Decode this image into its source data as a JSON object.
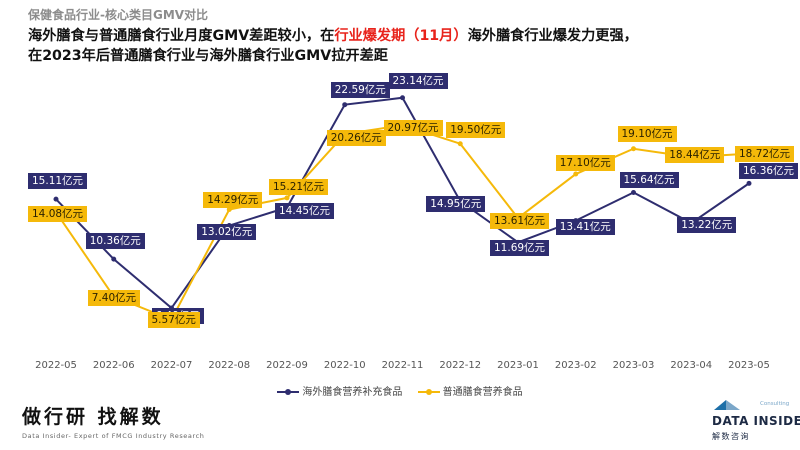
{
  "subtitle": "保健食品行业-核心类目GMV对比",
  "headline": {
    "line1_before": "海外膳食与普通膳食行业月度GMV差距较小，在",
    "line1_highlight": "行业爆发期（11月）",
    "line1_after": "海外膳食行业爆发力更强，",
    "line2": "在2023年后普通膳食行业与海外膳食行业GMV拉开差距"
  },
  "chart_data": {
    "type": "line",
    "categories": [
      "2022-05",
      "2022-06",
      "2022-07",
      "2022-08",
      "2022-09",
      "2022-10",
      "2022-11",
      "2022-12",
      "2023-01",
      "2023-02",
      "2023-03",
      "2023-04",
      "2023-05"
    ],
    "unit": "亿元",
    "series": [
      {
        "name": "海外膳食营养补充食品",
        "color": "#2e2d6f",
        "values": [
          15.11,
          10.36,
          6.49,
          13.02,
          14.45,
          22.59,
          23.14,
          14.95,
          11.69,
          13.41,
          15.64,
          13.22,
          16.36
        ],
        "labels": [
          "15.11亿元",
          "10.36亿元",
          "6.49亿元",
          "13.02亿元",
          "14.45亿元",
          "22.59亿元",
          "23.14亿元",
          "14.95亿元",
          "11.69亿元",
          "13.41亿元",
          "15.64亿元",
          "13.22亿元",
          "16.36亿元"
        ]
      },
      {
        "name": "普通膳食营养食品",
        "color": "#f5b90a",
        "values": [
          14.08,
          7.4,
          5.57,
          14.29,
          15.21,
          20.26,
          20.97,
          19.5,
          13.61,
          17.1,
          19.1,
          18.44,
          18.72
        ],
        "labels": [
          "14.08亿元",
          "7.40亿元",
          "5.57亿元",
          "14.29亿元",
          "15.21亿元",
          "20.26亿元",
          "20.97亿元",
          "19.50亿元",
          "13.61亿元",
          "17.10亿元",
          "19.10亿元",
          "18.44亿元",
          "18.72亿元"
        ]
      }
    ],
    "grid": false,
    "legend_position": "bottom-center"
  },
  "brand": {
    "name": "做行研 找解数",
    "tagline": "Data Insider- Expert of FMCG Industry Research"
  },
  "logo": {
    "small": "Consulting",
    "name": "DATA INSIDER",
    "cn": "解数咨询"
  }
}
